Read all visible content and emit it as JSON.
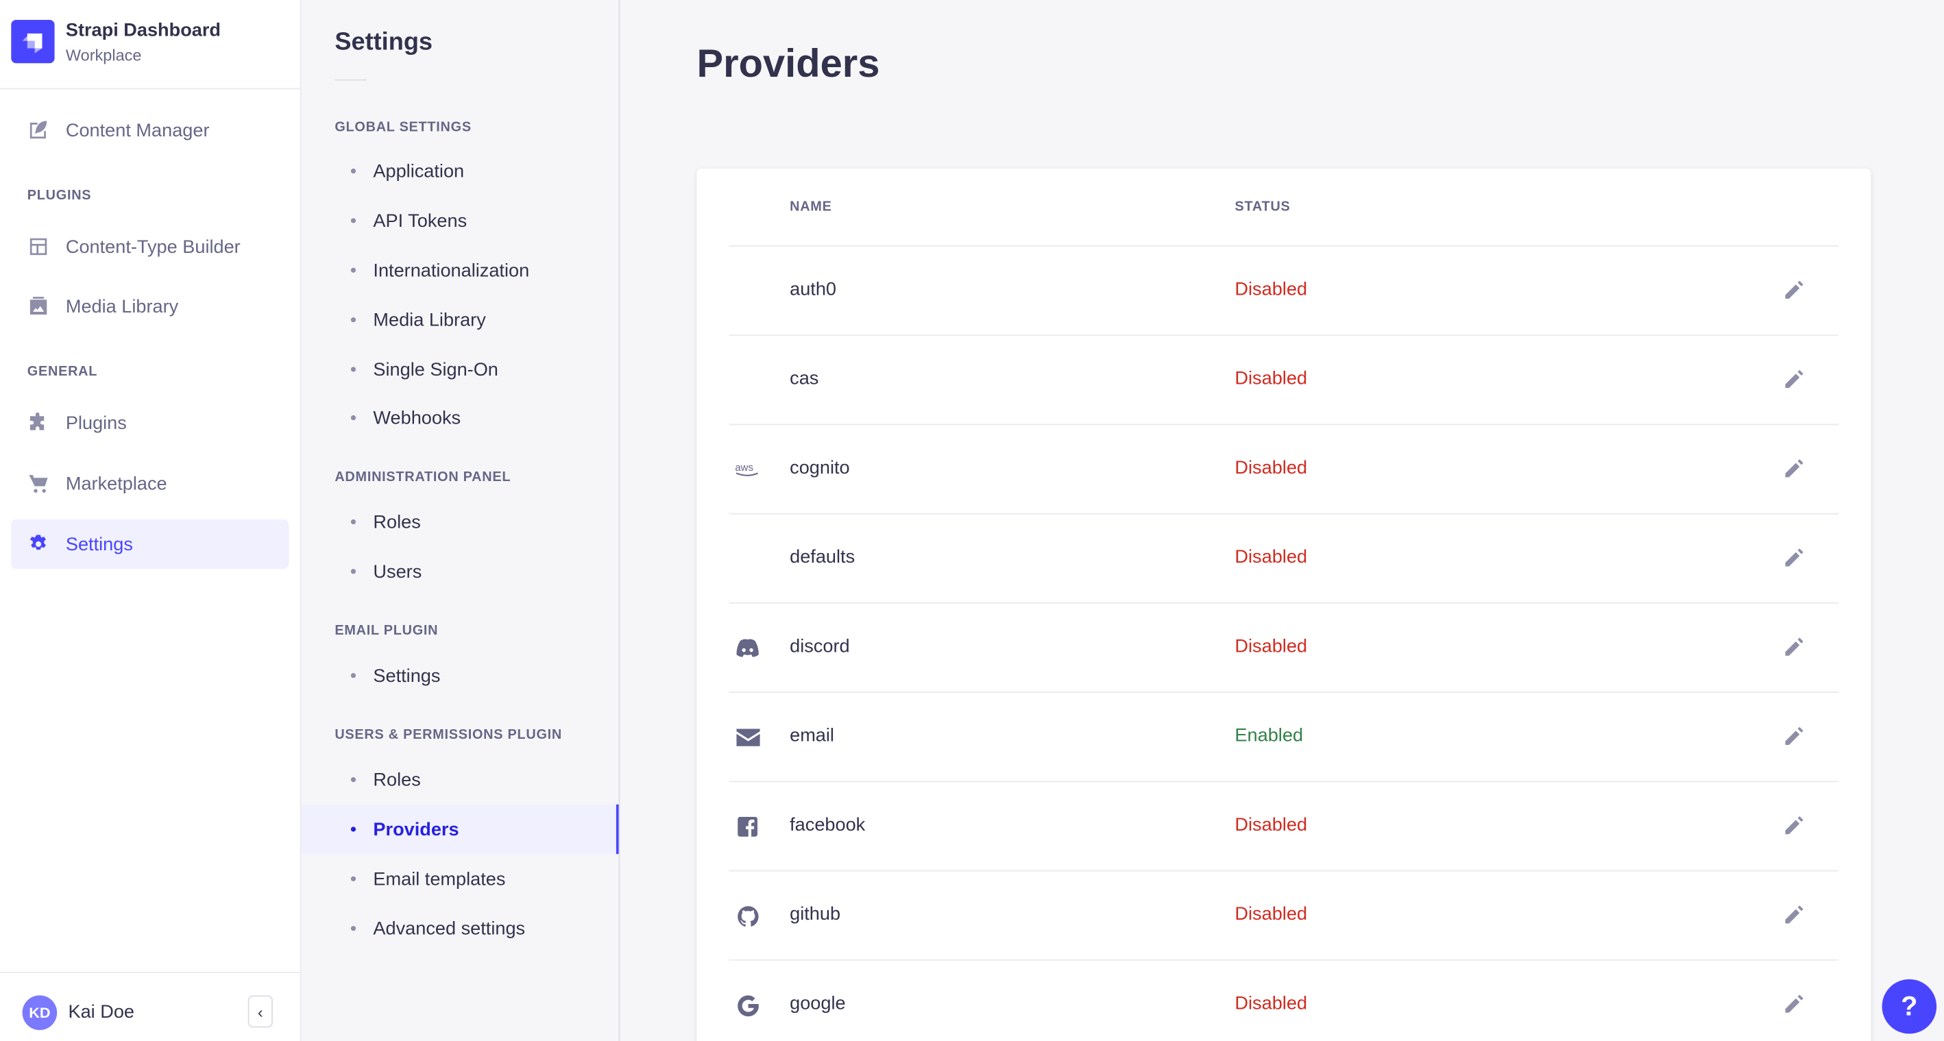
{
  "app": {
    "title": "Strapi Dashboard",
    "workspace": "Workplace"
  },
  "nav": {
    "content_manager": "Content Manager",
    "plugins_label": "PLUGINS",
    "content_type_builder": "Content-Type Builder",
    "media_library": "Media Library",
    "general_label": "GENERAL",
    "plugins": "Plugins",
    "marketplace": "Marketplace",
    "settings": "Settings",
    "user": {
      "initials": "KD",
      "name": "Kai Doe"
    }
  },
  "subnav": {
    "title": "Settings",
    "sections": [
      {
        "label": "GLOBAL SETTINGS",
        "items": [
          "Application",
          "API Tokens",
          "Internationalization",
          "Media Library",
          "Single Sign-On",
          "Webhooks"
        ]
      },
      {
        "label": "ADMINISTRATION PANEL",
        "items": [
          "Roles",
          "Users"
        ]
      },
      {
        "label": "EMAIL PLUGIN",
        "items": [
          "Settings"
        ]
      },
      {
        "label": "USERS & PERMISSIONS PLUGIN",
        "items": [
          "Roles",
          "Providers",
          "Email templates",
          "Advanced settings"
        ]
      }
    ],
    "active": "Providers"
  },
  "main": {
    "title": "Providers",
    "columns": {
      "name": "NAME",
      "status": "STATUS"
    },
    "rows": [
      {
        "icon": "",
        "name": "auth0",
        "status": "Disabled"
      },
      {
        "icon": "",
        "name": "cas",
        "status": "Disabled"
      },
      {
        "icon": "aws-icon",
        "name": "cognito",
        "status": "Disabled"
      },
      {
        "icon": "",
        "name": "defaults",
        "status": "Disabled"
      },
      {
        "icon": "discord-icon",
        "name": "discord",
        "status": "Disabled"
      },
      {
        "icon": "envelope-icon",
        "name": "email",
        "status": "Enabled"
      },
      {
        "icon": "facebook-icon",
        "name": "facebook",
        "status": "Disabled"
      },
      {
        "icon": "github-icon",
        "name": "github",
        "status": "Disabled"
      },
      {
        "icon": "google-icon",
        "name": "google",
        "status": "Disabled"
      }
    ]
  },
  "help": "?",
  "colors": {
    "accent": "#4945ff",
    "disabled": "#d02b20",
    "enabled": "#328048"
  }
}
